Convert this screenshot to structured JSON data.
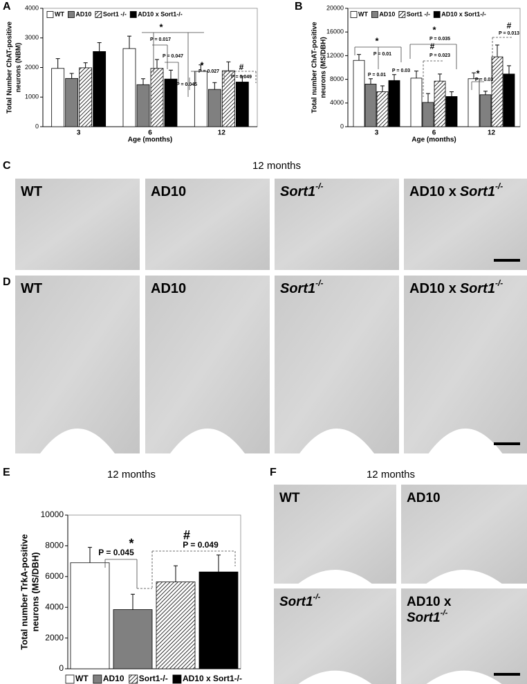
{
  "chart_data": [
    {
      "panel": "A",
      "type": "bar",
      "ylabel": [
        "Total Number ChAT-positive",
        "neurons (NBM)"
      ],
      "xlabel": "Age (months)",
      "categories": [
        "3",
        "6",
        "12"
      ],
      "ylim": [
        0,
        4000
      ],
      "yticks": [
        0,
        1000,
        2000,
        3000,
        4000
      ],
      "series": [
        {
          "name": "WT",
          "color": "#ffffff",
          "values": [
            1970,
            2640,
            1870
          ],
          "errors": [
            330,
            420,
            220
          ]
        },
        {
          "name": "AD10",
          "color": "#808080",
          "values": [
            1630,
            1420,
            1260
          ],
          "errors": [
            170,
            200,
            230
          ]
        },
        {
          "name": "Sort1 -/-",
          "color": "#ffffff",
          "hatch": true,
          "values": [
            1990,
            1970,
            1890
          ],
          "errors": [
            170,
            300,
            300
          ]
        },
        {
          "name": "AD10 x Sort1-/-",
          "color": "#000000",
          "values": [
            2540,
            1610,
            1510
          ],
          "errors": [
            300,
            300,
            200
          ]
        }
      ],
      "annotations": [
        "*",
        "P = 0.017",
        "P = 0.047",
        "P = 0.045",
        "*",
        "P = 0.027",
        "#",
        "P = 0.049"
      ]
    },
    {
      "panel": "B",
      "type": "bar",
      "ylabel": [
        "Total number ChAT-positive",
        "neurons (MS/DBH)"
      ],
      "xlabel": "Age (months)",
      "categories": [
        "3",
        "6",
        "12"
      ],
      "ylim": [
        0,
        20000
      ],
      "yticks": [
        0,
        4000,
        8000,
        12000,
        16000,
        20000
      ],
      "series": [
        {
          "name": "WT",
          "color": "#ffffff",
          "values": [
            11200,
            8200,
            8100
          ],
          "errors": [
            1000,
            1200,
            1000
          ]
        },
        {
          "name": "AD10",
          "color": "#808080",
          "values": [
            7200,
            4100,
            5400
          ],
          "errors": [
            900,
            1500,
            600
          ]
        },
        {
          "name": "Sort1 -/-",
          "color": "#ffffff",
          "hatch": true,
          "values": [
            5900,
            7700,
            11800
          ],
          "errors": [
            1000,
            1200,
            2000
          ]
        },
        {
          "name": "AD10 x Sort1-/-",
          "color": "#000000",
          "values": [
            7800,
            5100,
            8900
          ],
          "errors": [
            1000,
            800,
            1400
          ]
        }
      ],
      "annotations": [
        "*",
        "P = 0.01",
        "P = 0.01",
        "P = 0.03",
        "*",
        "P = 0.035",
        "#",
        "P = 0.023",
        "*",
        "P = 0.03",
        "#",
        "P = 0.013"
      ]
    },
    {
      "panel": "E",
      "type": "bar",
      "title": "12 months",
      "ylabel": [
        "Total number TrkA-positive",
        "neurons (MS/DBH)"
      ],
      "categories": [
        null
      ],
      "ylim": [
        0,
        10000
      ],
      "yticks": [
        0,
        2000,
        4000,
        6000,
        8000,
        10000
      ],
      "series": [
        {
          "name": "WT",
          "color": "#ffffff",
          "values": [
            6900
          ],
          "errors": [
            1000
          ]
        },
        {
          "name": "AD10",
          "color": "#808080",
          "values": [
            3850
          ],
          "errors": [
            1000
          ]
        },
        {
          "name": "Sort1-/-",
          "color": "#ffffff",
          "hatch": true,
          "values": [
            5650
          ],
          "errors": [
            1050
          ]
        },
        {
          "name": "AD10 x Sort1-/-",
          "color": "#000000",
          "values": [
            6300
          ],
          "errors": [
            1100
          ]
        }
      ],
      "annotations": [
        "*",
        "P = 0.045",
        "#",
        "P = 0.049"
      ]
    }
  ],
  "image_panels": [
    {
      "panel": "C",
      "caption": "12 months",
      "images": [
        {
          "label": "WT"
        },
        {
          "label": "AD10"
        },
        {
          "italic": "Sort1",
          "sup": "-/-"
        },
        {
          "label": "AD10 x",
          "italic": "Sort1",
          "sup": "-/-"
        }
      ]
    },
    {
      "panel": "D",
      "images": [
        {
          "label": "WT"
        },
        {
          "label": "AD10"
        },
        {
          "italic": "Sort1",
          "sup": "-/-"
        },
        {
          "label": "AD10 x",
          "italic": "Sort1",
          "sup": "-/-"
        }
      ]
    },
    {
      "panel": "F",
      "caption": "12 months",
      "images": [
        {
          "label": "WT"
        },
        {
          "label": "AD10"
        },
        {
          "italic": "Sort1",
          "sup": "-/-"
        },
        {
          "label": "AD10 x",
          "italic": "Sort1",
          "sup": "-/-"
        }
      ]
    }
  ]
}
